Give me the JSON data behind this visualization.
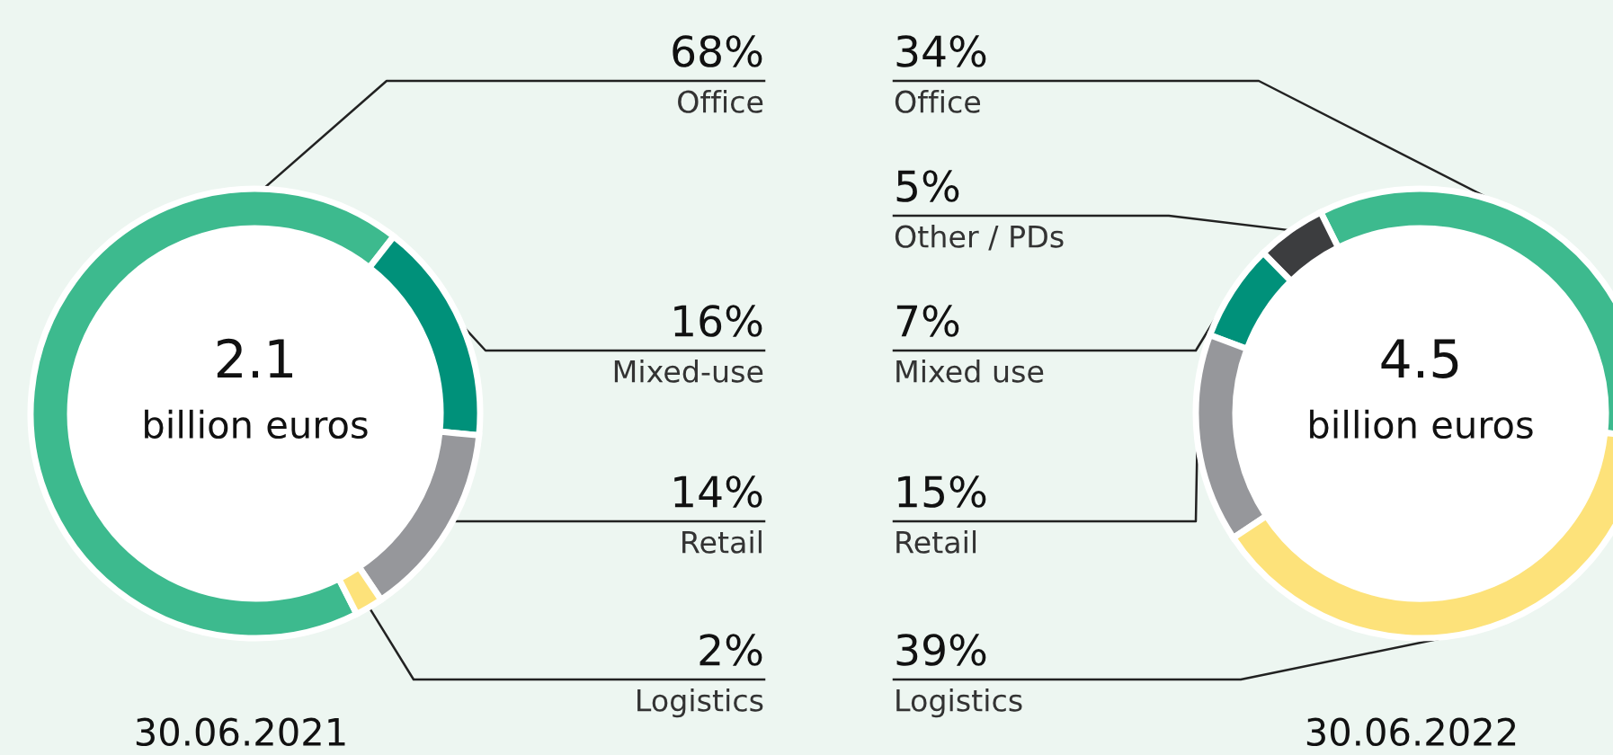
{
  "chart_data": [
    {
      "type": "donut",
      "title": "2.1",
      "subtitle": "billion euros",
      "xlabel": "30.06.2021",
      "categories": [
        "Office",
        "Mixed-use",
        "Retail",
        "Logistics"
      ],
      "values": [
        68,
        16,
        14,
        2
      ],
      "colors": [
        "#3dba8e",
        "#00917a",
        "#96979b",
        "#fde27a"
      ],
      "value_labels": [
        "68%",
        "16%",
        "14%",
        "2%"
      ]
    },
    {
      "type": "donut",
      "title": "4.5",
      "subtitle": "billion euros",
      "xlabel": "30.06.2022",
      "categories": [
        "Office",
        "Other / PDs",
        "Mixed use",
        "Retail",
        "Logistics"
      ],
      "values": [
        34,
        5,
        7,
        15,
        39
      ],
      "colors": [
        "#3dba8e",
        "#3c3d3f",
        "#00917a",
        "#96979b",
        "#fde27a"
      ],
      "value_labels": [
        "34%",
        "5%",
        "7%",
        "15%",
        "39%"
      ]
    }
  ]
}
